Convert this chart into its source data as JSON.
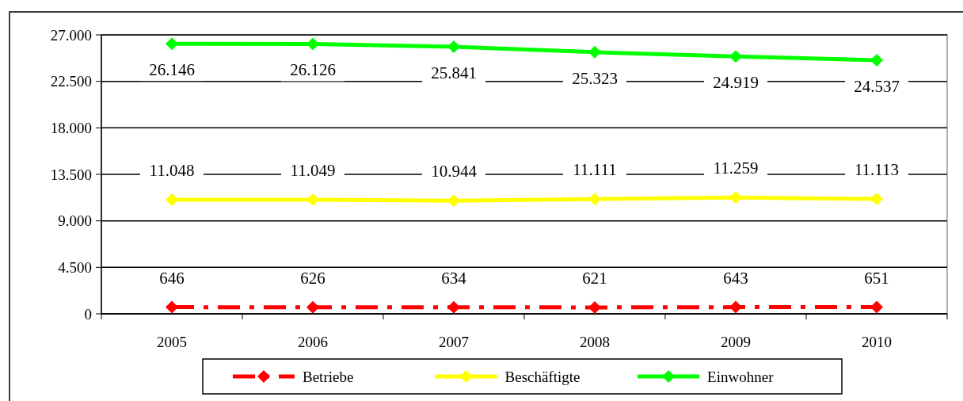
{
  "chart_data": {
    "type": "line",
    "categories": [
      "2005",
      "2006",
      "2007",
      "2008",
      "2009",
      "2010"
    ],
    "series": [
      {
        "name": "Betriebe",
        "color": "#ff0000",
        "values": [
          646,
          626,
          634,
          621,
          643,
          651
        ],
        "value_labels": [
          "646",
          "626",
          "634",
          "621",
          "643",
          "651"
        ],
        "line_style": "dashdot",
        "marker": "diamond"
      },
      {
        "name": "Beschäftigte",
        "color": "#ffff00",
        "values": [
          11048,
          11049,
          10944,
          11111,
          11259,
          11113
        ],
        "value_labels": [
          "11.048",
          "11.049",
          "10.944",
          "11.111",
          "11.259",
          "11.113"
        ],
        "line_style": "solid",
        "marker": "diamond"
      },
      {
        "name": "Einwohner",
        "color": "#00ff00",
        "values": [
          26146,
          26126,
          25841,
          25323,
          24919,
          24537
        ],
        "value_labels": [
          "26.146",
          "26.126",
          "25.841",
          "25.323",
          "24.919",
          "24.537"
        ],
        "line_style": "solid",
        "marker": "diamond"
      }
    ],
    "ylim": [
      0,
      27000
    ],
    "yticks": [
      0,
      {
        "value": 4500,
        "label": "4.500"
      },
      {
        "value": 9000,
        "label": "9.000"
      },
      {
        "value": 13500,
        "label": "13.500"
      },
      {
        "value": 18000,
        "label": "18.000"
      },
      {
        "value": 22500,
        "label": "22.500"
      },
      {
        "value": 27000,
        "label": "27.000"
      }
    ],
    "grid": "y",
    "legend": "bottom"
  }
}
